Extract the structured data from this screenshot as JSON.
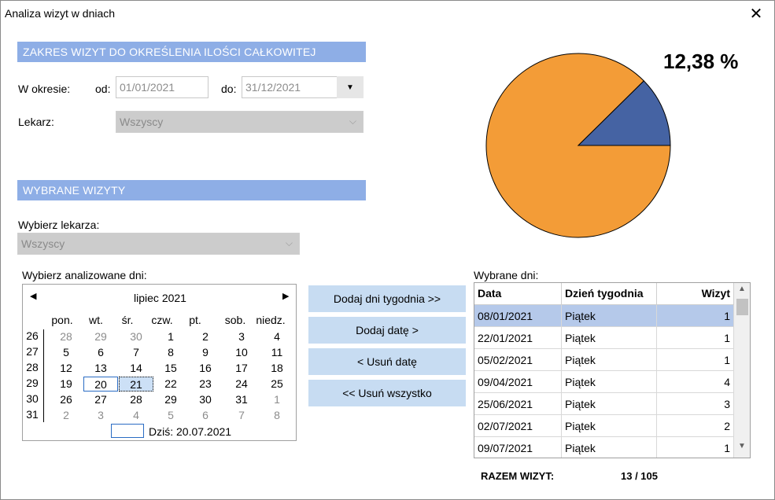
{
  "window": {
    "title": "Analiza wizyt w dniach",
    "close_glyph": "✕"
  },
  "sections": {
    "range_header": "ZAKRES WIZYT DO OKREŚLENIA ILOŚCI CAŁKOWITEJ",
    "selected_header": "WYBRANE WIZYTY"
  },
  "range": {
    "period_label": "W okresie:",
    "from_label": "od:",
    "from_value": "01/01/2021",
    "to_label": "do:",
    "to_value": "31/12/2021",
    "doctor_label": "Lekarz:",
    "doctor_value": "Wszyscy"
  },
  "selected": {
    "choose_doctor_label": "Wybierz lekarza:",
    "doctor_value": "Wszyscy",
    "choose_days_label": "Wybierz analizowane dni:"
  },
  "calendar": {
    "month_title": "lipiec 2021",
    "prev_glyph": "◀",
    "next_glyph": "▶",
    "weekdays": [
      "pon.",
      "wt.",
      "śr.",
      "czw.",
      "pt.",
      "sob.",
      "niedz."
    ],
    "weeks": [
      {
        "num": "26",
        "days": [
          {
            "d": "28",
            "m": true
          },
          {
            "d": "29",
            "m": true
          },
          {
            "d": "30",
            "m": true
          },
          {
            "d": "1"
          },
          {
            "d": "2"
          },
          {
            "d": "3"
          },
          {
            "d": "4"
          }
        ]
      },
      {
        "num": "27",
        "days": [
          {
            "d": "5"
          },
          {
            "d": "6"
          },
          {
            "d": "7"
          },
          {
            "d": "8"
          },
          {
            "d": "9"
          },
          {
            "d": "10"
          },
          {
            "d": "11"
          }
        ]
      },
      {
        "num": "28",
        "days": [
          {
            "d": "12"
          },
          {
            "d": "13"
          },
          {
            "d": "14"
          },
          {
            "d": "15"
          },
          {
            "d": "16"
          },
          {
            "d": "17"
          },
          {
            "d": "18"
          }
        ]
      },
      {
        "num": "29",
        "days": [
          {
            "d": "19"
          },
          {
            "d": "20",
            "today": true
          },
          {
            "d": "21",
            "sel": true
          },
          {
            "d": "22"
          },
          {
            "d": "23"
          },
          {
            "d": "24"
          },
          {
            "d": "25"
          }
        ]
      },
      {
        "num": "30",
        "days": [
          {
            "d": "26"
          },
          {
            "d": "27"
          },
          {
            "d": "28"
          },
          {
            "d": "29"
          },
          {
            "d": "30"
          },
          {
            "d": "31"
          },
          {
            "d": "1",
            "m": true
          }
        ]
      },
      {
        "num": "31",
        "days": [
          {
            "d": "2",
            "m": true
          },
          {
            "d": "3",
            "m": true
          },
          {
            "d": "4",
            "m": true
          },
          {
            "d": "5",
            "m": true
          },
          {
            "d": "6",
            "m": true
          },
          {
            "d": "7",
            "m": true
          },
          {
            "d": "8",
            "m": true
          }
        ]
      }
    ],
    "today_text": "Dziś: 20.07.2021"
  },
  "buttons": {
    "add_weekdays": "Dodaj dni tygodnia >>",
    "add_date": "Dodaj datę >",
    "remove_date": "< Usuń datę",
    "remove_all": "<< Usuń wszystko"
  },
  "grid": {
    "label": "Wybrane dni:",
    "columns": [
      "Data",
      "Dzień tygodnia",
      "Wizyt"
    ],
    "rows": [
      {
        "date": "08/01/2021",
        "day": "Piątek",
        "visits": "1",
        "selected": true
      },
      {
        "date": "22/01/2021",
        "day": "Piątek",
        "visits": "1"
      },
      {
        "date": "05/02/2021",
        "day": "Piątek",
        "visits": "1"
      },
      {
        "date": "09/04/2021",
        "day": "Piątek",
        "visits": "4"
      },
      {
        "date": "25/06/2021",
        "day": "Piątek",
        "visits": "3"
      },
      {
        "date": "02/07/2021",
        "day": "Piątek",
        "visits": "2"
      },
      {
        "date": "09/07/2021",
        "day": "Piątek",
        "visits": "1"
      }
    ]
  },
  "totals": {
    "label": "RAZEM WIZYT:",
    "value": "13 / 105"
  },
  "pie": {
    "percent_text": "12,38 %",
    "selected_value": 13,
    "total_value": 105,
    "selected_color": "#4563a3",
    "rest_color": "#f39c37"
  }
}
